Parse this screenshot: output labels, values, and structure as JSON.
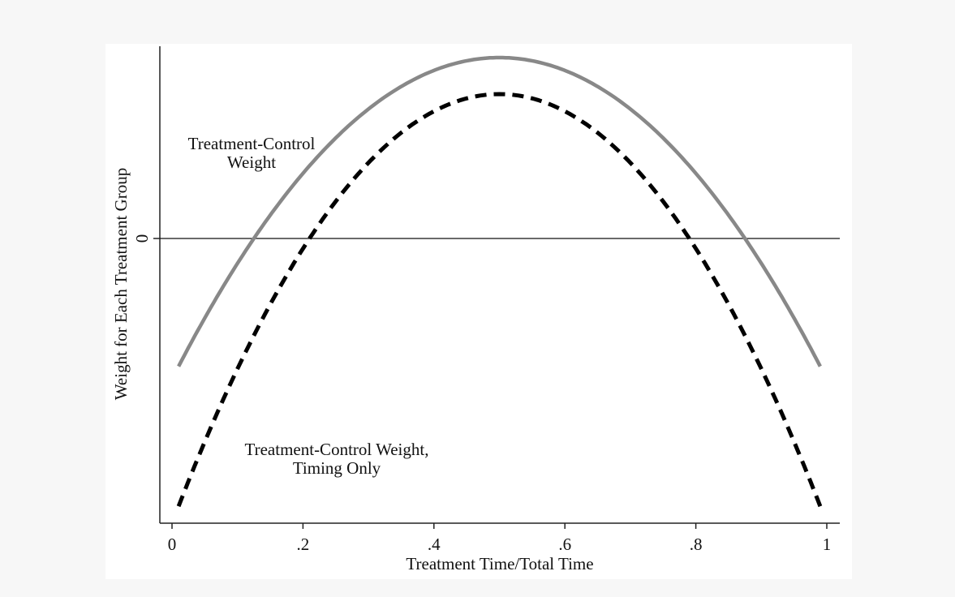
{
  "chart_data": {
    "type": "line",
    "title": "",
    "xlabel": "Treatment Time/Total Time",
    "ylabel": "Weight for Each Treatment Group",
    "xlim": [
      -0.02,
      1.02
    ],
    "ylim": [
      -3.51,
      2.37
    ],
    "x_ticks": [
      0,
      0.2,
      0.4,
      0.6,
      0.8,
      1
    ],
    "x_tick_labels": [
      "0",
      ".2",
      ".4",
      ".6",
      ".8",
      "1"
    ],
    "y_ticks": [
      0
    ],
    "y_tick_labels": [
      "0"
    ],
    "reference_line_y": 0,
    "grid": false,
    "series": [
      {
        "name": "Treatment-Control Weight",
        "label_lines": [
          "Treatment-Control",
          "Weight"
        ],
        "style": "solid",
        "color": "#888888",
        "x_range": [
          0.01,
          0.99
        ],
        "peak_x": 0.5,
        "peak_y": 2.23,
        "zero_crossings": [
          0.125,
          0.875
        ]
      },
      {
        "name": "Treatment-Control Weight, Timing Only",
        "label_lines": [
          "Treatment-Control Weight,",
          "Timing Only"
        ],
        "style": "dashed",
        "color": "#000000",
        "x_range": [
          0.01,
          0.99
        ],
        "peak_x": 0.5,
        "peak_y": 1.78,
        "zero_crossings": [
          0.21,
          0.79
        ]
      }
    ]
  }
}
